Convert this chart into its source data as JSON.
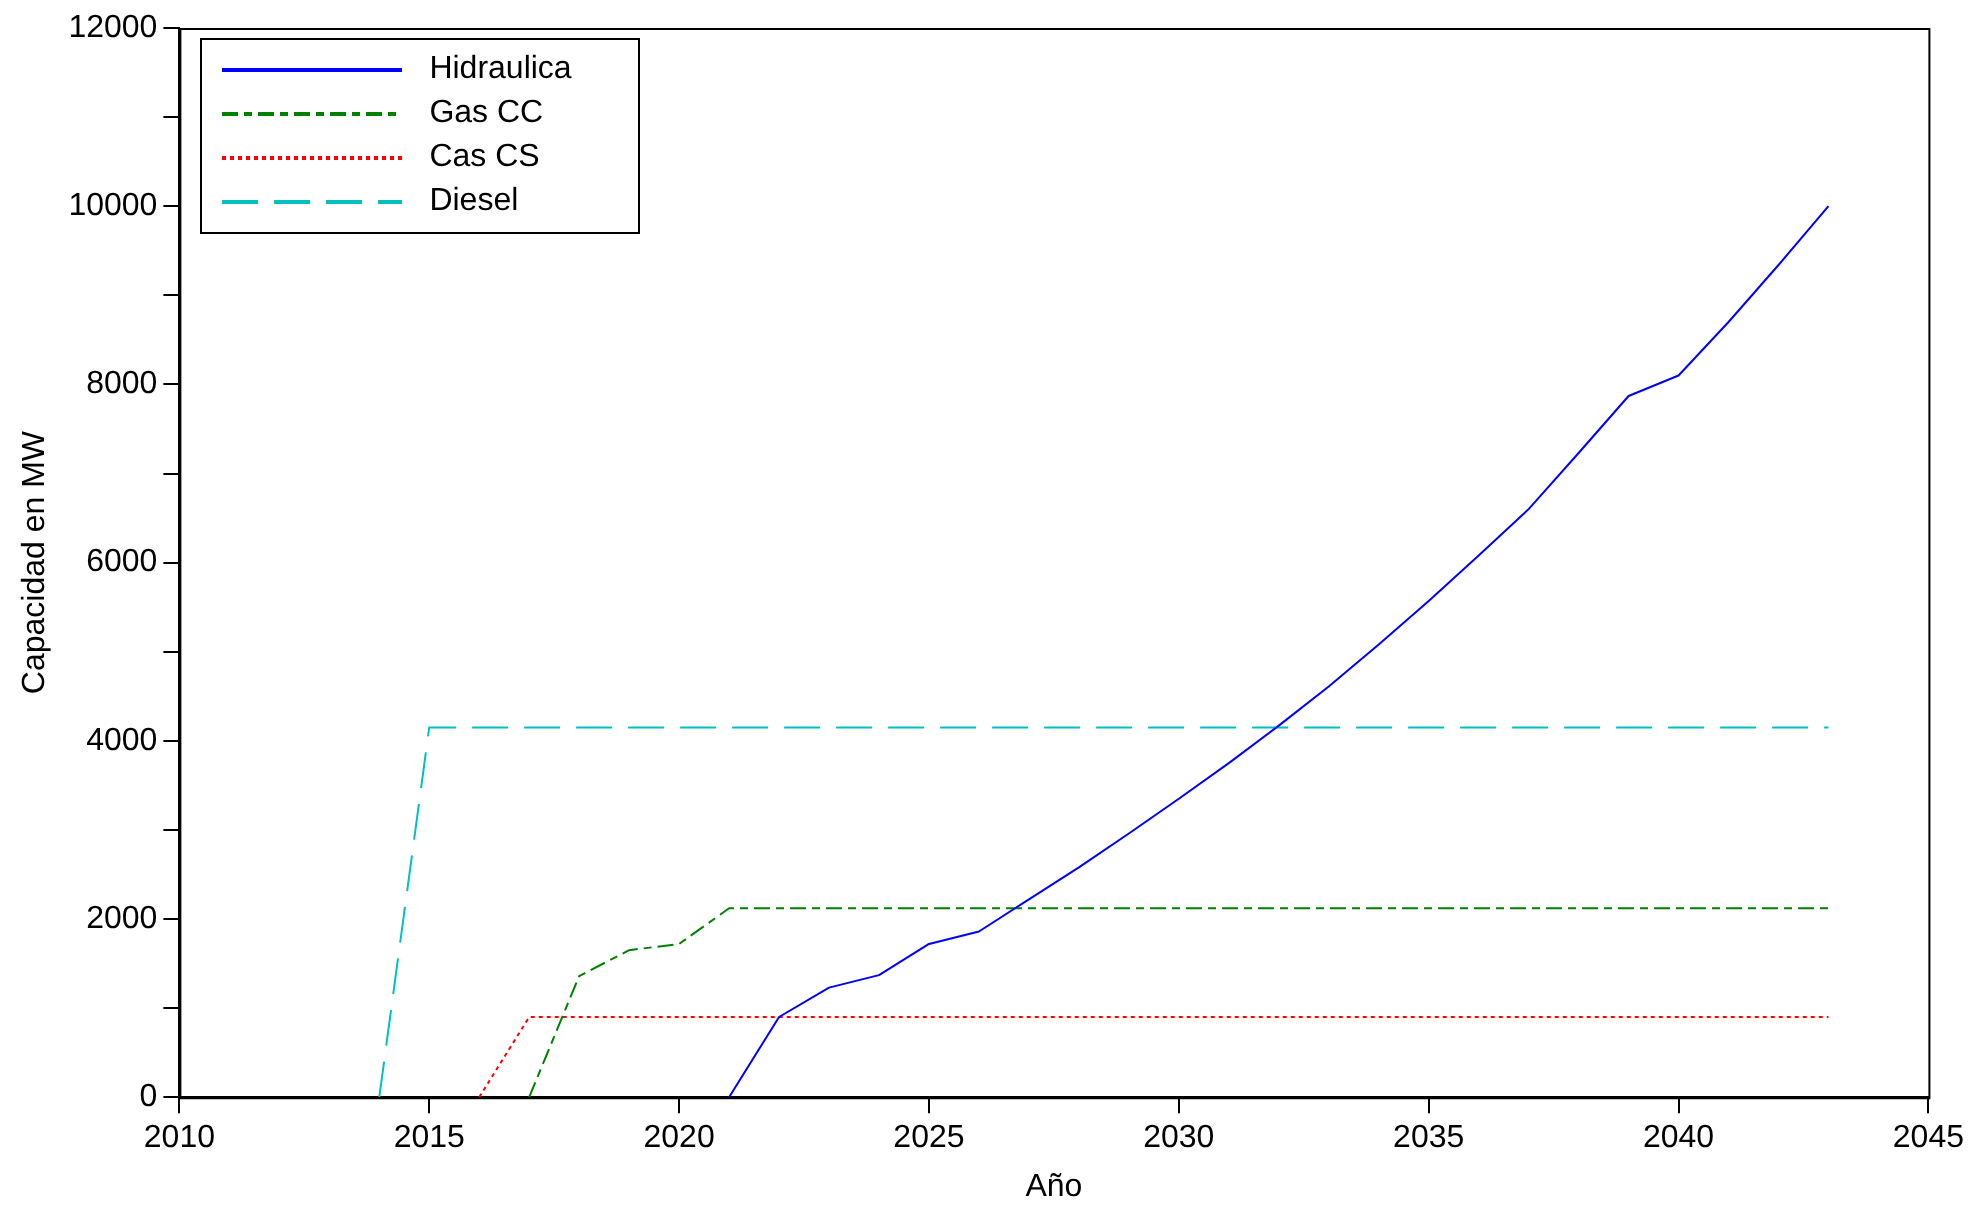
{
  "chart_data": {
    "type": "line",
    "xlabel": "Año",
    "ylabel": "Capacidad en MW",
    "series": [
      {
        "name": "Hidraulica",
        "color": "#0000ff",
        "line_style": "solid",
        "x": [
          2021,
          2022,
          2023,
          2024,
          2025,
          2026,
          2027,
          2028,
          2029,
          2030,
          2031,
          2032,
          2033,
          2034,
          2035,
          2036,
          2037,
          2038,
          2039,
          2040,
          2041,
          2042,
          2043
        ],
        "values": [
          0,
          900,
          1230,
          1370,
          1720,
          1860,
          2220,
          2580,
          2960,
          3350,
          3750,
          4170,
          4610,
          5080,
          5570,
          6080,
          6600,
          7230,
          7870,
          8100,
          8700,
          9340,
          10000
        ]
      },
      {
        "name": "Gas CC",
        "color": "#008000",
        "line_style": "dashdot",
        "x": [
          2017,
          2018,
          2019,
          2020,
          2021,
          2022,
          2023,
          2024,
          2025,
          2026,
          2027,
          2028,
          2029,
          2030,
          2031,
          2032,
          2033,
          2034,
          2035,
          2036,
          2037,
          2038,
          2039,
          2040,
          2041,
          2042,
          2043
        ],
        "values": [
          0,
          1360,
          1650,
          1720,
          2120,
          2120,
          2120,
          2120,
          2120,
          2120,
          2120,
          2120,
          2120,
          2120,
          2120,
          2120,
          2120,
          2120,
          2120,
          2120,
          2120,
          2120,
          2120,
          2120,
          2120,
          2120,
          2120
        ]
      },
      {
        "name": "Cas CS",
        "color": "#ff0000",
        "line_style": "dotted",
        "x": [
          2016,
          2017,
          2018,
          2019,
          2020,
          2021,
          2022,
          2023,
          2024,
          2025,
          2026,
          2027,
          2028,
          2029,
          2030,
          2031,
          2032,
          2033,
          2034,
          2035,
          2036,
          2037,
          2038,
          2039,
          2040,
          2041,
          2042,
          2043
        ],
        "values": [
          0,
          900,
          900,
          900,
          900,
          900,
          900,
          900,
          900,
          900,
          900,
          900,
          900,
          900,
          900,
          900,
          900,
          900,
          900,
          900,
          900,
          900,
          900,
          900,
          900,
          900,
          900,
          900
        ]
      },
      {
        "name": "Diesel",
        "color": "#00c0c0",
        "line_style": "dashed",
        "x": [
          2014,
          2015,
          2016,
          2017,
          2018,
          2019,
          2020,
          2021,
          2022,
          2023,
          2024,
          2025,
          2026,
          2027,
          2028,
          2029,
          2030,
          2031,
          2032,
          2033,
          2034,
          2035,
          2036,
          2037,
          2038,
          2039,
          2040,
          2041,
          2042,
          2043
        ],
        "values": [
          0,
          4150,
          4150,
          4150,
          4150,
          4150,
          4150,
          4150,
          4150,
          4150,
          4150,
          4150,
          4150,
          4150,
          4150,
          4150,
          4150,
          4150,
          4150,
          4150,
          4150,
          4150,
          4150,
          4150,
          4150,
          4150,
          4150,
          4150,
          4150,
          4150
        ]
      }
    ],
    "xlim": [
      2010,
      2045
    ],
    "xticks": [
      2010,
      2015,
      2020,
      2025,
      2030,
      2035,
      2040,
      2045
    ],
    "ylim": [
      0,
      12000
    ],
    "yticks": [
      0,
      {
        "value": 1000,
        "label": null
      },
      2000,
      {
        "value": 3000,
        "label": null
      },
      4000,
      {
        "value": 5000,
        "label": null
      },
      6000,
      {
        "value": 7000,
        "label": null
      },
      8000,
      {
        "value": 9000,
        "label": null
      },
      10000,
      {
        "value": 11000,
        "label": null
      },
      12000
    ],
    "grid": false,
    "legend": "top left",
    "marker": "none"
  }
}
